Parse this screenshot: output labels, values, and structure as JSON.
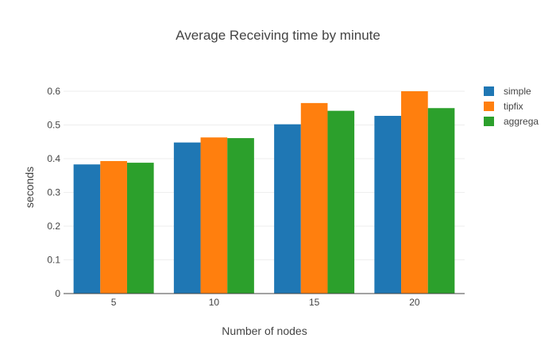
{
  "chart_data": {
    "type": "bar",
    "title": "Average Receiving time by minute",
    "xlabel": "Number of nodes",
    "ylabel": "seconds",
    "categories": [
      "5",
      "10",
      "15",
      "20"
    ],
    "ylim": [
      0,
      0.6
    ],
    "yticks": [
      "0",
      "0.1",
      "0.2",
      "0.3",
      "0.4",
      "0.5",
      "0.6"
    ],
    "grid": true,
    "legend_position": "top-right",
    "series": [
      {
        "name": "simple",
        "color": "#1f77b4",
        "values": [
          0.383,
          0.448,
          0.502,
          0.527
        ]
      },
      {
        "name": "tipfix",
        "color": "#ff7f0e",
        "values": [
          0.393,
          0.463,
          0.565,
          0.6
        ]
      },
      {
        "name": "aggrega",
        "color": "#2ca02c",
        "values": [
          0.388,
          0.461,
          0.542,
          0.55
        ]
      }
    ]
  }
}
